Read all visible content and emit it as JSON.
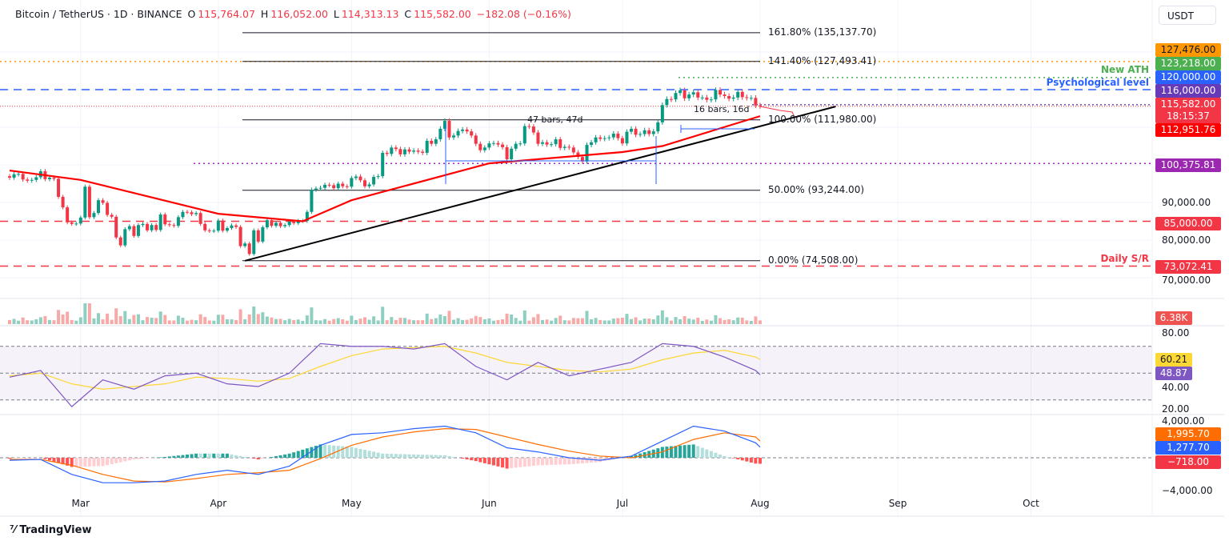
{
  "header": {
    "symbol": "Bitcoin / TetherUS · 1D · BINANCE",
    "open_label": "O",
    "open": "115,764.07",
    "high_label": "H",
    "high": "116,052.00",
    "low_label": "L",
    "low": "114,313.13",
    "close_label": "C",
    "close": "115,582.00",
    "change": "−182.08 (−0.16%)"
  },
  "currency": "USDT",
  "branding": "TradingView",
  "price_tags": [
    {
      "text": "127,476.00",
      "color": "#ff9800",
      "fg": "#131722"
    },
    {
      "text": "123,218.00",
      "color": "#4caf50",
      "fg": "#ffffff"
    },
    {
      "text": "120,000.00",
      "color": "#2962ff",
      "fg": "#ffffff"
    },
    {
      "text": "116,000.00",
      "color": "#673ab7",
      "fg": "#ffffff"
    },
    {
      "text": "115,582.00",
      "color": "#f23645",
      "fg": "#ffffff"
    },
    {
      "text": "18:15:37",
      "color": "#f23645",
      "fg": "#ffffff"
    },
    {
      "text": "112,951.76",
      "color": "#ff0000",
      "fg": "#ffffff"
    },
    {
      "text": "100,375.81",
      "color": "#9c27b0",
      "fg": "#ffffff"
    },
    {
      "text": "85,000.00",
      "color": "#f23645",
      "fg": "#ffffff"
    },
    {
      "text": "73,072.41",
      "color": "#f23645",
      "fg": "#ffffff"
    },
    {
      "text": "6.38K",
      "color": "#ef5350",
      "fg": "#ffffff"
    },
    {
      "text": "60.21",
      "color": "#fdd835",
      "fg": "#131722"
    },
    {
      "text": "48.87",
      "color": "#7e57c2",
      "fg": "#ffffff"
    },
    {
      "text": "1,995.70",
      "color": "#ff6d00",
      "fg": "#ffffff"
    },
    {
      "text": "1,277.70",
      "color": "#2962ff",
      "fg": "#ffffff"
    },
    {
      "text": "−718.00",
      "color": "#f23645",
      "fg": "#ffffff"
    }
  ],
  "axis_labels": [
    "90,000.00",
    "80,000.00",
    "70,000.00",
    "80.00",
    "40.00",
    "20.00",
    "4,000.00",
    "−4,000.00"
  ],
  "annotations": {
    "new_ath": "New ATH",
    "psych": "Psychological level",
    "daily_sr": "Daily S/R",
    "range1": "47 bars, 47d",
    "range2": "16 bars, 16d"
  },
  "chart_data": {
    "type": "candlestick",
    "title": "Bitcoin / TetherUS · 1D · BINANCE",
    "x_ticks": [
      "Mar",
      "Apr",
      "May",
      "Jun",
      "Jul",
      "Aug",
      "Sep",
      "Oct"
    ],
    "y_ticks": [
      70000,
      80000,
      90000
    ],
    "ylim": [
      66000,
      138000
    ],
    "colors": {
      "up": "#089981",
      "down": "#f23645",
      "ema": "#ff0000"
    },
    "closes_thousands": [
      {
        "month": "Feb",
        "first_day": 13,
        "close": [
          96.6,
          97.5,
          97.6,
          96.1,
          95.8,
          96.0,
          96.7,
          98.3,
          96.2,
          96.6,
          96.3,
          91.5,
          88.7,
          84.7,
          84.3,
          84.4
        ]
      },
      {
        "month": "Mar",
        "first_day": 1,
        "close": [
          86.0,
          94.2,
          86.1,
          87.2,
          90.6,
          89.9,
          86.7,
          86.2,
          80.7,
          78.6,
          82.9,
          83.7,
          81.1,
          84.0,
          84.3,
          82.6,
          84.0,
          82.7,
          86.8,
          84.2,
          84.0,
          83.8,
          86.1,
          87.5,
          87.4,
          86.9,
          87.2,
          84.3,
          82.6,
          82.4,
          82.5
        ]
      },
      {
        "month": "Apr",
        "first_day": 1,
        "close": [
          85.2,
          82.5,
          83.2,
          83.9,
          83.5,
          78.4,
          79.1,
          76.3,
          82.6,
          79.6,
          83.4,
          85.3,
          83.8,
          84.6,
          83.7,
          84.0,
          84.9,
          84.5,
          85.1,
          85.1,
          87.5,
          93.4,
          93.7,
          93.9,
          94.7,
          94.6,
          93.8,
          95.0,
          94.3,
          94.2
        ]
      },
      {
        "month": "May",
        "first_day": 1,
        "close": [
          96.5,
          96.9,
          95.9,
          94.3,
          94.8,
          96.8,
          97.0,
          103.2,
          102.9,
          104.6,
          104.2,
          102.8,
          104.1,
          103.5,
          103.8,
          103.5,
          103.2,
          106.4,
          105.6,
          106.8,
          109.6,
          111.7,
          107.3,
          107.8,
          109.0,
          109.4,
          108.9,
          107.8,
          105.6,
          103.9,
          104.6
        ]
      },
      {
        "month": "Jun",
        "first_day": 1,
        "close": [
          105.7,
          105.8,
          105.4,
          104.7,
          101.5,
          104.3,
          105.6,
          105.7,
          110.3,
          110.2,
          108.6,
          105.6,
          106.0,
          105.4,
          105.5,
          106.8,
          104.5,
          104.8,
          104.6,
          103.3,
          102.1,
          100.9,
          105.3,
          106.0,
          107.3,
          106.9,
          107.1,
          107.3,
          108.3,
          107.1
        ]
      },
      {
        "month": "Jul",
        "first_day": 1,
        "close": [
          105.7,
          108.8,
          109.6,
          108.0,
          108.2,
          109.2,
          108.2,
          108.9,
          111.3,
          115.9,
          117.5,
          117.4,
          119.1,
          119.8,
          117.7,
          118.7,
          119.3,
          117.9,
          117.9,
          117.3,
          117.4,
          119.9,
          118.7,
          118.3,
          117.6,
          117.9,
          119.4,
          118.0,
          117.8,
          117.8,
          115.8
        ]
      },
      {
        "month": "Aug",
        "first_day": 1,
        "close": [
          115.58
        ]
      }
    ],
    "ema": [
      [
        "Feb 13",
        98500
      ],
      [
        "Mar 1",
        96000
      ],
      [
        "Apr 1",
        87000
      ],
      [
        "Apr 20",
        85000
      ],
      [
        "May 1",
        90600
      ],
      [
        "Jun 1",
        100400
      ],
      [
        "Jul 1",
        103400
      ],
      [
        "Jul 10",
        105000
      ],
      [
        "Aug 1",
        112951.76
      ]
    ],
    "levels": [
      {
        "name": "fib-161.8",
        "label": "161.80% (135,137.70)",
        "value": 135137.7
      },
      {
        "name": "fib-141.4",
        "label": "141.40% (127,493.41)",
        "value": 127493.41
      },
      {
        "name": "fib-100",
        "label": "100.00% (111,980.00)",
        "value": 111980
      },
      {
        "name": "fib-50",
        "label": "50.00% (93,244.00)",
        "value": 93244
      },
      {
        "name": "fib-0",
        "label": "0.00% (74,508.00)",
        "value": 74508
      }
    ],
    "hlines": {
      "ath": 123218,
      "psych": 120000,
      "level116": 116000,
      "current": 115582,
      "support100k": 100375.81,
      "support85k": 85000,
      "daily_sr": 73072.41,
      "orange": 127476
    },
    "trendline": [
      [
        "Apr 7",
        74508
      ],
      [
        "Aug 18",
        115500
      ]
    ],
    "rsi": {
      "ylim": [
        15,
        85
      ],
      "ticks": [
        20,
        40,
        80
      ],
      "bands": [
        30,
        50,
        70
      ],
      "values": [
        [
          "Feb 13",
          47
        ],
        [
          "Feb 20",
          52
        ],
        [
          "Feb 27",
          25
        ],
        [
          "Mar 6",
          45
        ],
        [
          "Mar 13",
          38
        ],
        [
          "Mar 20",
          48
        ],
        [
          "Mar 27",
          50
        ],
        [
          "Apr 3",
          42
        ],
        [
          "Apr 10",
          40
        ],
        [
          "Apr 17",
          50
        ],
        [
          "Apr 24",
          72
        ],
        [
          "May 1",
          70
        ],
        [
          "May 8",
          70
        ],
        [
          "May 15",
          68
        ],
        [
          "May 22",
          72
        ],
        [
          "May 29",
          55
        ],
        [
          "Jun 5",
          45
        ],
        [
          "Jun 12",
          58
        ],
        [
          "Jun 19",
          48
        ],
        [
          "Jun 26",
          53
        ],
        [
          "Jul 3",
          58
        ],
        [
          "Jul 10",
          72
        ],
        [
          "Jul 17",
          70
        ],
        [
          "Jul 24",
          62
        ],
        [
          "Jul 31",
          52
        ],
        [
          "Aug 1",
          48.87
        ]
      ],
      "ma": [
        [
          "Feb 13",
          48
        ],
        [
          "Feb 20",
          50
        ],
        [
          "Feb 27",
          42
        ],
        [
          "Mar 6",
          38
        ],
        [
          "Mar 13",
          40
        ],
        [
          "Mar 20",
          42
        ],
        [
          "Mar 27",
          47
        ],
        [
          "Apr 3",
          46
        ],
        [
          "Apr 10",
          44
        ],
        [
          "Apr 17",
          46
        ],
        [
          "Apr 24",
          55
        ],
        [
          "May 1",
          63
        ],
        [
          "May 8",
          68
        ],
        [
          "May 15",
          69
        ],
        [
          "May 22",
          70
        ],
        [
          "May 29",
          65
        ],
        [
          "Jun 5",
          58
        ],
        [
          "Jun 12",
          55
        ],
        [
          "Jun 19",
          52
        ],
        [
          "Jun 26",
          51
        ],
        [
          "Jul 3",
          53
        ],
        [
          "Jul 10",
          60
        ],
        [
          "Jul 17",
          65
        ],
        [
          "Jul 24",
          67
        ],
        [
          "Jul 31",
          62
        ],
        [
          "Aug 1",
          60.21
        ]
      ]
    },
    "macd": {
      "ticks": [
        4000,
        0,
        -4000
      ],
      "macd": [
        [
          "Feb 13",
          -300
        ],
        [
          "Feb 20",
          -200
        ],
        [
          "Feb 27",
          -2000
        ],
        [
          "Mar 6",
          -3000
        ],
        [
          "Mar 13",
          -3000
        ],
        [
          "Mar 20",
          -2800
        ],
        [
          "Mar 27",
          -2000
        ],
        [
          "Apr 3",
          -1500
        ],
        [
          "Apr 10",
          -2000
        ],
        [
          "Apr 17",
          -1000
        ],
        [
          "Apr 24",
          1500
        ],
        [
          "May 1",
          2800
        ],
        [
          "May 8",
          3000
        ],
        [
          "May 15",
          3500
        ],
        [
          "May 22",
          3800
        ],
        [
          "May 29",
          3000
        ],
        [
          "Jun 5",
          1200
        ],
        [
          "Jun 12",
          700
        ],
        [
          "Jun 19",
          0
        ],
        [
          "Jun 26",
          -300
        ],
        [
          "Jul 3",
          200
        ],
        [
          "Jul 10",
          2000
        ],
        [
          "Jul 17",
          3800
        ],
        [
          "Jul 24",
          3200
        ],
        [
          "Jul 31",
          1800
        ],
        [
          "Aug 1",
          1277.7
        ]
      ],
      "signal": [
        [
          "Feb 13",
          -200
        ],
        [
          "Feb 20",
          -200
        ],
        [
          "Feb 27",
          -900
        ],
        [
          "Mar 6",
          -2000
        ],
        [
          "Mar 13",
          -2800
        ],
        [
          "Mar 20",
          -2900
        ],
        [
          "Mar 27",
          -2500
        ],
        [
          "Apr 3",
          -2000
        ],
        [
          "Apr 10",
          -1800
        ],
        [
          "Apr 17",
          -1500
        ],
        [
          "Apr 24",
          -100
        ],
        [
          "May 1",
          1500
        ],
        [
          "May 8",
          2500
        ],
        [
          "May 15",
          3100
        ],
        [
          "May 22",
          3500
        ],
        [
          "May 29",
          3400
        ],
        [
          "Jun 5",
          2500
        ],
        [
          "Jun 12",
          1600
        ],
        [
          "Jun 19",
          800
        ],
        [
          "Jun 26",
          200
        ],
        [
          "Jul 3",
          0
        ],
        [
          "Jul 10",
          700
        ],
        [
          "Jul 17",
          2200
        ],
        [
          "Jul 24",
          3000
        ],
        [
          "Jul 31",
          2500
        ],
        [
          "Aug 1",
          1995.7
        ]
      ]
    },
    "volume_last": "6.38K"
  }
}
